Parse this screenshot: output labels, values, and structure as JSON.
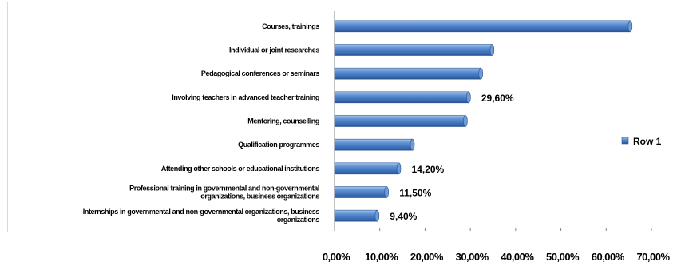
{
  "chart_data": {
    "type": "bar",
    "orientation": "horizontal",
    "categories": [
      [
        "Courses, trainings"
      ],
      [
        "Individual or joint researches"
      ],
      [
        "Pedagogical conferences or seminars"
      ],
      [
        "Involving teachers in advanced teacher training"
      ],
      [
        "Mentoring, counselling"
      ],
      [
        "Qualification programmes"
      ],
      [
        "Attending other schools  or educational institutions"
      ],
      [
        "Professional training in governmental and non-governmental",
        "organizations,  business  organizations"
      ],
      [
        "Internships in governmental and non-governmental organizations,  business",
        "organizations"
      ]
    ],
    "series": [
      {
        "name": "Row 1",
        "values": [
          65.3,
          34.8,
          32.3,
          29.6,
          28.9,
          17.2,
          14.2,
          11.5,
          9.4
        ],
        "data_labels": [
          "",
          "",
          "",
          "29,60%",
          "",
          "",
          "14,20%",
          "11,50%",
          "9,40%"
        ]
      }
    ],
    "xlim": [
      0,
      70
    ],
    "x_ticks": [
      "0,00%",
      "10,00%",
      "20,00%",
      "30,00%",
      "40,00%",
      "50,00%",
      "60,00%",
      "70,00%"
    ],
    "bar_color": "#4f81bd",
    "legend_position": "right",
    "title": "",
    "xlabel": "",
    "ylabel": ""
  }
}
